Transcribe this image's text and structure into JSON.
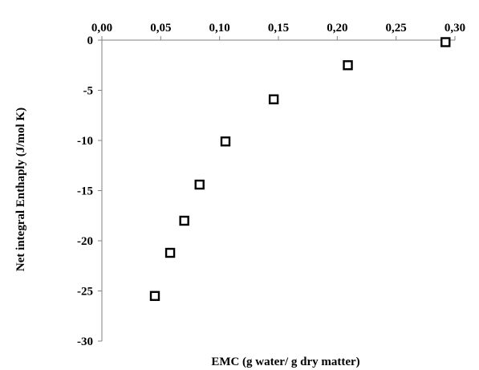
{
  "chart_data": {
    "type": "scatter",
    "xlabel": "EMC (g water/ g dry matter)",
    "ylabel": "Net  integral Enthaply (J/mol K)",
    "xlim": [
      0,
      0.3
    ],
    "ylim": [
      -30,
      0
    ],
    "x_axis_position": "top",
    "x_ticks": [
      0,
      0.05,
      0.1,
      0.15,
      0.2,
      0.25,
      0.3
    ],
    "x_tick_labels": [
      "0,00",
      "0,05",
      "0,10",
      "0,15",
      "0,20",
      "0,25",
      "0,30"
    ],
    "y_ticks": [
      0,
      -5,
      -10,
      -15,
      -20,
      -25,
      -30
    ],
    "y_tick_labels": [
      "0",
      "-5",
      "-10",
      "-15",
      "-20",
      "-25",
      "-30"
    ],
    "grid": false,
    "marker": "open-square",
    "marker_color": "#000000",
    "axis_color": "#808080",
    "points": [
      {
        "x": 0.045,
        "y": -25.5
      },
      {
        "x": 0.058,
        "y": -21.2
      },
      {
        "x": 0.07,
        "y": -18.0
      },
      {
        "x": 0.083,
        "y": -14.4
      },
      {
        "x": 0.105,
        "y": -10.1
      },
      {
        "x": 0.146,
        "y": -5.9
      },
      {
        "x": 0.209,
        "y": -2.5
      },
      {
        "x": 0.292,
        "y": -0.2
      }
    ]
  }
}
